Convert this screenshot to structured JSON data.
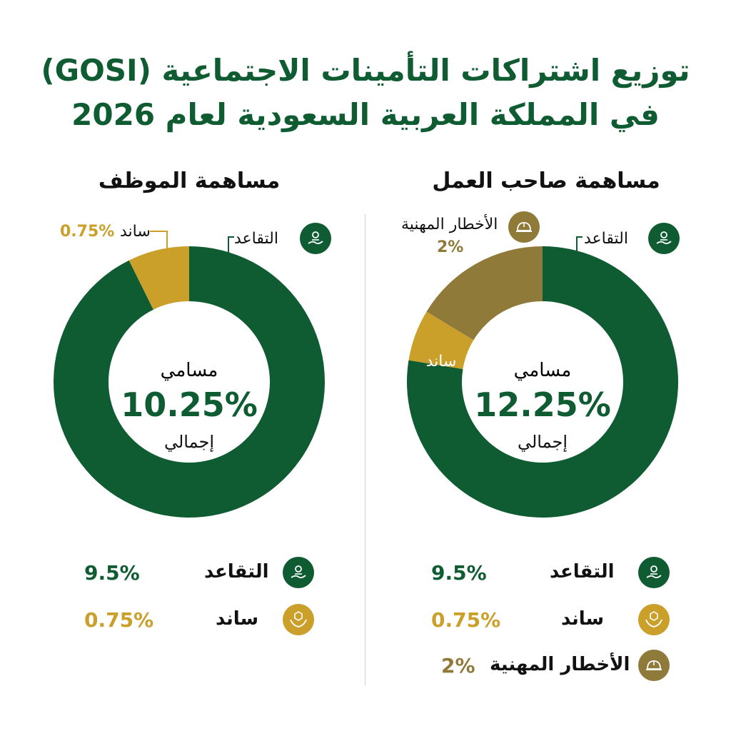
{
  "title": {
    "line1": "توزيع اشتراكات التأمينات الاجتماعية (GOSI)",
    "line2": "في المملكة العربية السعودية لعام 2026"
  },
  "colors": {
    "green": "#0f5c33",
    "gold": "#caa02a",
    "bronze": "#8f7a3a"
  },
  "chart_data": [
    {
      "type": "pie",
      "title": "مساهمة الموظف",
      "center": {
        "top": "مسامي",
        "value": "10.25%",
        "bottom": "إجمالي"
      },
      "slices": [
        {
          "label": "التقاعد",
          "value": 9.5,
          "display": "9.5%",
          "color": "#0f5c33",
          "icon": "retirement-icon"
        },
        {
          "label": "ساند",
          "value": 0.75,
          "display": "0.75%",
          "color": "#caa02a",
          "icon": "saned-icon"
        }
      ],
      "callouts": {
        "green": "التقاعد",
        "gold_label": "ساند",
        "gold_value": "0.75%"
      }
    },
    {
      "type": "pie",
      "title": "مساهمة صاحب العمل",
      "center": {
        "top": "مسامي",
        "value": "12.25%",
        "bottom": "إجمالي"
      },
      "slices": [
        {
          "label": "التقاعد",
          "value": 9.5,
          "display": "9.5%",
          "color": "#0f5c33",
          "icon": "retirement-icon"
        },
        {
          "label": "ساند",
          "value": 0.75,
          "display": "0.75%",
          "color": "#caa02a",
          "icon": "saned-icon"
        },
        {
          "label": "الأخطار المهنية",
          "value": 2,
          "display": "2%",
          "color": "#8f7a3a",
          "icon": "hardhat-icon"
        }
      ],
      "callouts": {
        "green": "التقاعد",
        "gold_label": "ساند",
        "bronze_label": "الأخطار المهنية",
        "bronze_value": "2%"
      }
    }
  ]
}
